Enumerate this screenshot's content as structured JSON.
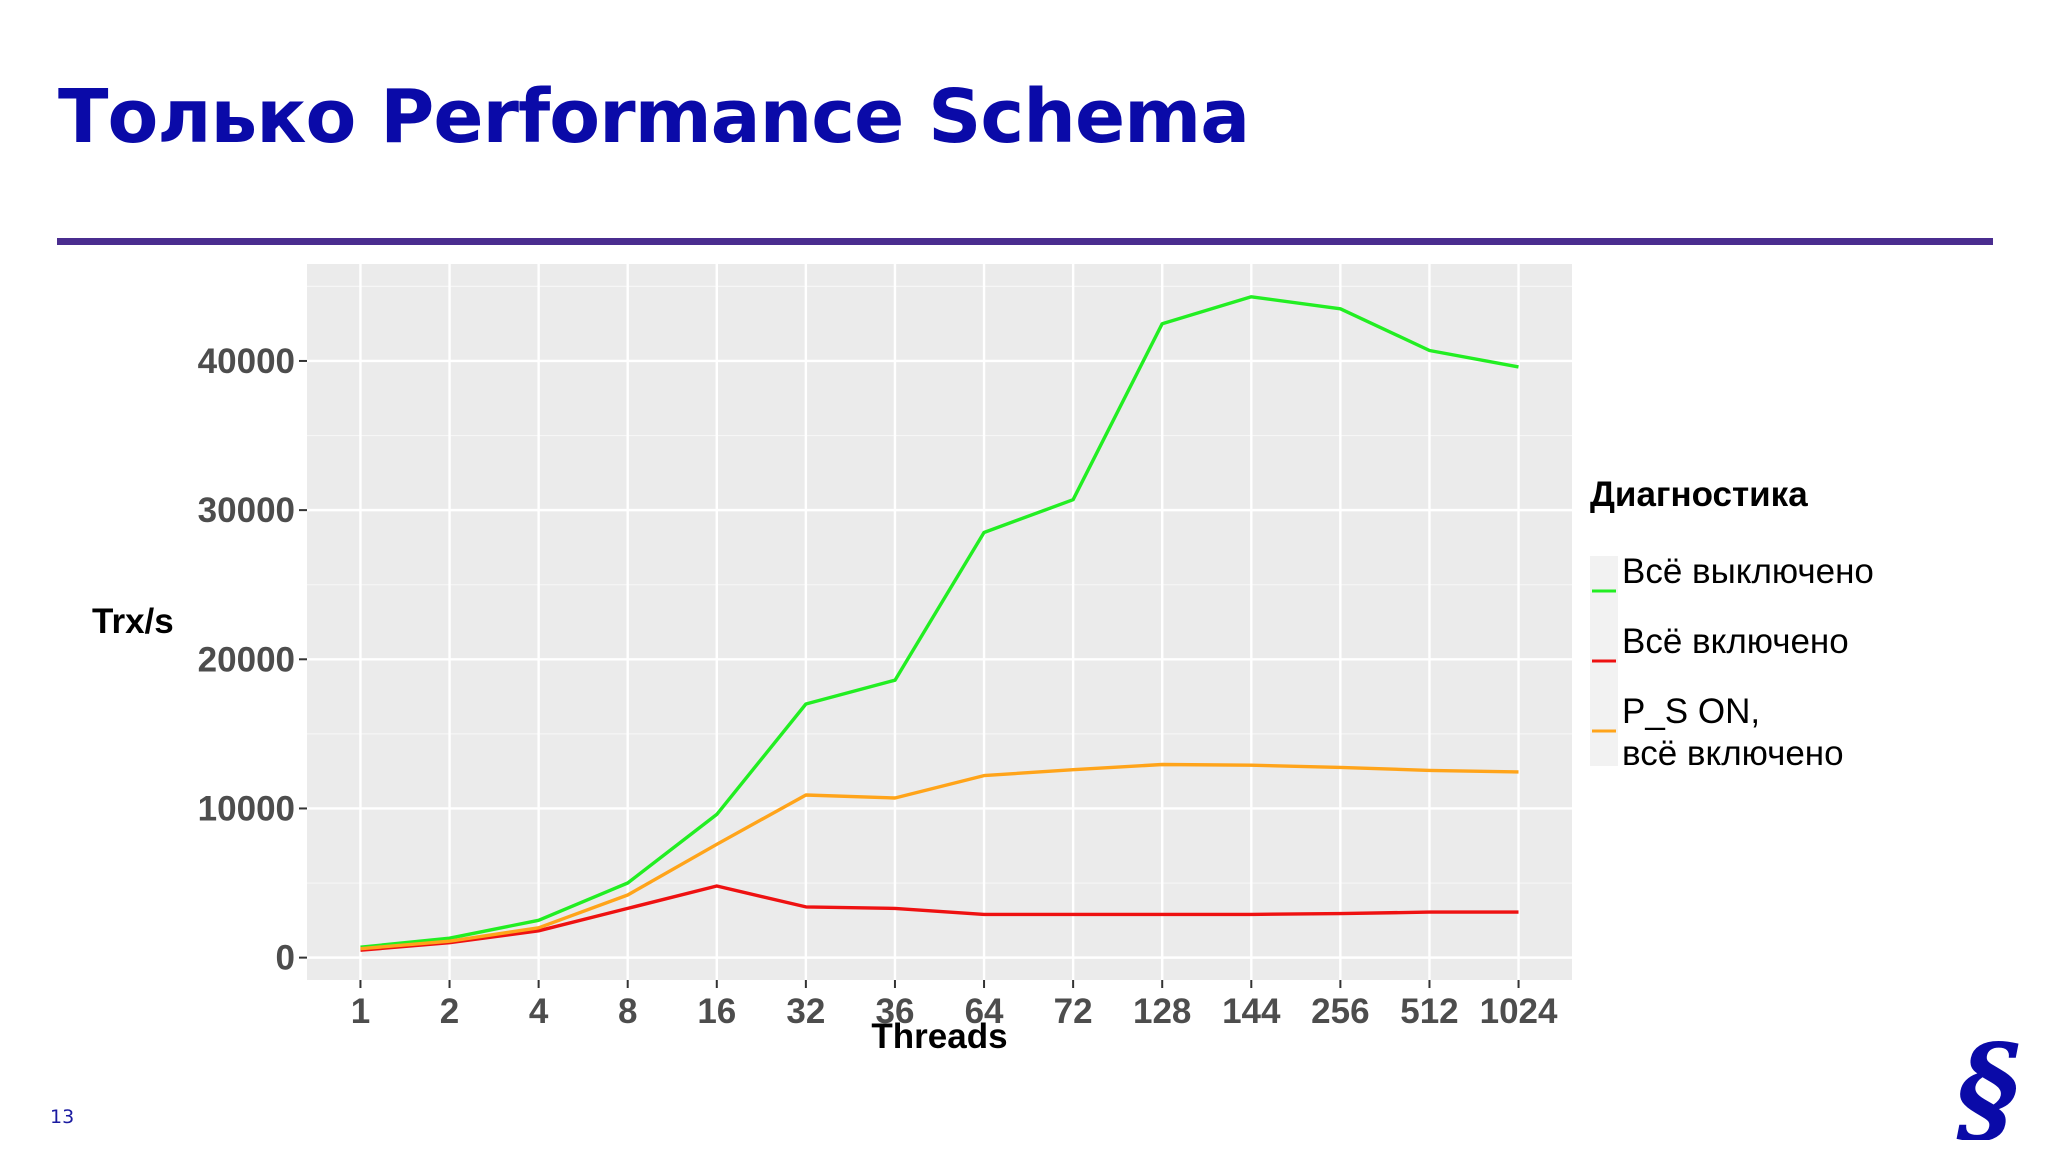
{
  "slide": {
    "title": "Только Performance Schema",
    "page_number": "13",
    "accent_color": "#0a0aa8",
    "rule_color": "#4a2d8f",
    "logo_icon": "section-sign-logo"
  },
  "chart_data": {
    "type": "line",
    "xlabel": "Threads",
    "ylabel": "Trx/s",
    "categories": [
      "1",
      "2",
      "4",
      "8",
      "16",
      "32",
      "36",
      "64",
      "72",
      "128",
      "144",
      "256",
      "512",
      "1024"
    ],
    "ylim": [
      -1500,
      46500
    ],
    "yticks": [
      0,
      10000,
      20000,
      30000,
      40000
    ],
    "grid": true,
    "legend": {
      "title": "Диагностика",
      "placement": "right"
    },
    "series": [
      {
        "name": "Всё выключено",
        "color": "#22ee22",
        "values": [
          700,
          1300,
          2500,
          5000,
          9600,
          17000,
          18600,
          28500,
          30700,
          42500,
          44300,
          43500,
          40700,
          39600
        ]
      },
      {
        "name": "Всё включено",
        "color": "#ee1111",
        "values": [
          500,
          1000,
          1800,
          3300,
          4800,
          3400,
          3300,
          2900,
          2900,
          2900,
          2900,
          2950,
          3050,
          3050
        ]
      },
      {
        "name": "P_S ON,\nвсё включено",
        "name_lines": [
          "P_S ON,",
          "всё включено"
        ],
        "color": "#ffa41a",
        "values": [
          600,
          1100,
          2000,
          4200,
          7600,
          10900,
          10700,
          12200,
          12600,
          12950,
          12900,
          12750,
          12550,
          12450
        ]
      }
    ]
  }
}
